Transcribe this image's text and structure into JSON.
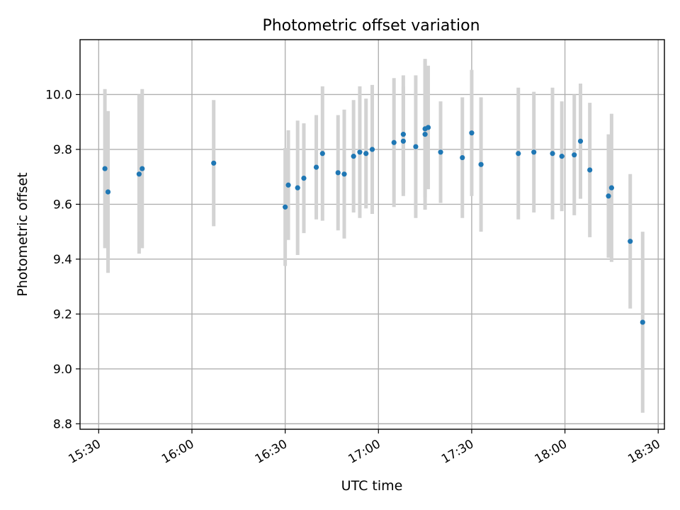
{
  "chart_data": {
    "type": "scatter",
    "title": "Photometric offset variation",
    "xlabel": "UTC time",
    "ylabel": "Photometric offset",
    "xlim": [
      "15:24",
      "18:32"
    ],
    "ylim": [
      8.78,
      10.2
    ],
    "x_ticks": [
      "15:30",
      "16:00",
      "16:30",
      "17:00",
      "17:30",
      "18:00",
      "18:30"
    ],
    "y_ticks": [
      "8.8",
      "9.0",
      "9.2",
      "9.4",
      "9.6",
      "9.8",
      "10.0"
    ],
    "grid": true,
    "colors": {
      "point": "#1f77b4",
      "errorbar": "#d3d3d3"
    },
    "series": [
      {
        "points": [
          {
            "t": "15:32",
            "y": 9.73,
            "err": 0.29
          },
          {
            "t": "15:33",
            "y": 9.645,
            "err": 0.295
          },
          {
            "t": "15:43",
            "y": 9.71,
            "err": 0.29
          },
          {
            "t": "15:44",
            "y": 9.73,
            "err": 0.29
          },
          {
            "t": "16:07",
            "y": 9.75,
            "err": 0.23
          },
          {
            "t": "16:30",
            "y": 9.59,
            "err": 0.215
          },
          {
            "t": "16:31",
            "y": 9.67,
            "err": 0.2
          },
          {
            "t": "16:34",
            "y": 9.66,
            "err": 0.245
          },
          {
            "t": "16:36",
            "y": 9.695,
            "err": 0.2
          },
          {
            "t": "16:40",
            "y": 9.735,
            "err": 0.19
          },
          {
            "t": "16:42",
            "y": 9.785,
            "err": 0.245
          },
          {
            "t": "16:47",
            "y": 9.715,
            "err": 0.21
          },
          {
            "t": "16:49",
            "y": 9.71,
            "err": 0.235
          },
          {
            "t": "16:52",
            "y": 9.775,
            "err": 0.205
          },
          {
            "t": "16:54",
            "y": 9.79,
            "err": 0.24
          },
          {
            "t": "16:56",
            "y": 9.785,
            "err": 0.2
          },
          {
            "t": "16:58",
            "y": 9.8,
            "err": 0.235
          },
          {
            "t": "17:05",
            "y": 9.825,
            "err": 0.235
          },
          {
            "t": "17:08",
            "y": 9.83,
            "err": 0.2
          },
          {
            "t": "17:08",
            "y": 9.855,
            "err": 0.215
          },
          {
            "t": "17:12",
            "y": 9.81,
            "err": 0.26
          },
          {
            "t": "17:15",
            "y": 9.855,
            "err": 0.275
          },
          {
            "t": "17:15",
            "y": 9.875,
            "err": 0.25
          },
          {
            "t": "17:16",
            "y": 9.88,
            "err": 0.225
          },
          {
            "t": "17:20",
            "y": 9.79,
            "err": 0.185
          },
          {
            "t": "17:27",
            "y": 9.77,
            "err": 0.22
          },
          {
            "t": "17:30",
            "y": 9.86,
            "err": 0.23
          },
          {
            "t": "17:33",
            "y": 9.745,
            "err": 0.245
          },
          {
            "t": "17:45",
            "y": 9.785,
            "err": 0.24
          },
          {
            "t": "17:50",
            "y": 9.79,
            "err": 0.22
          },
          {
            "t": "17:56",
            "y": 9.785,
            "err": 0.24
          },
          {
            "t": "17:59",
            "y": 9.775,
            "err": 0.2
          },
          {
            "t": "18:03",
            "y": 9.78,
            "err": 0.22
          },
          {
            "t": "18:05",
            "y": 9.83,
            "err": 0.21
          },
          {
            "t": "18:08",
            "y": 9.725,
            "err": 0.245
          },
          {
            "t": "18:14",
            "y": 9.63,
            "err": 0.225
          },
          {
            "t": "18:15",
            "y": 9.66,
            "err": 0.27
          },
          {
            "t": "18:21",
            "y": 9.465,
            "err": 0.245
          },
          {
            "t": "18:25",
            "y": 9.17,
            "err": 0.33
          }
        ]
      }
    ]
  }
}
